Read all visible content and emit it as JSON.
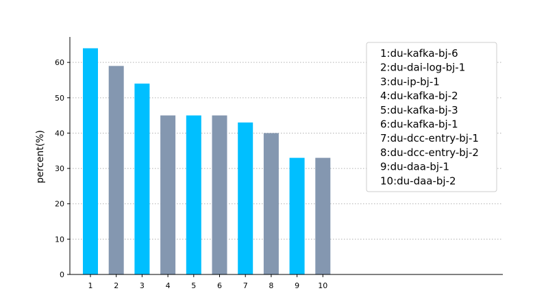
{
  "chart_data": {
    "type": "bar",
    "categories": [
      "1",
      "2",
      "3",
      "4",
      "5",
      "6",
      "7",
      "8",
      "9",
      "10"
    ],
    "values": [
      64,
      59,
      54,
      45,
      45,
      45,
      43,
      40,
      33,
      33
    ],
    "ylabel": "percent(%)",
    "xlabel": "",
    "ylim": [
      0,
      67.2
    ],
    "yticks": [
      0,
      10,
      20,
      30,
      40,
      50,
      60
    ],
    "grid": "horizontal-dotted",
    "colors": [
      "#00bfff",
      "#8497b0"
    ],
    "legend": {
      "placement": "top-right",
      "entries": [
        "1:du-kafka-bj-6",
        "2:du-dai-log-bj-1",
        "3:du-ip-bj-1",
        "4:du-kafka-bj-2",
        "5:du-kafka-bj-3",
        "6:du-kafka-bj-1",
        "7:du-dcc-entry-bj-1",
        "8:du-dcc-entry-bj-2",
        "9:du-daa-bj-1",
        "10:du-daa-bj-2"
      ]
    }
  }
}
